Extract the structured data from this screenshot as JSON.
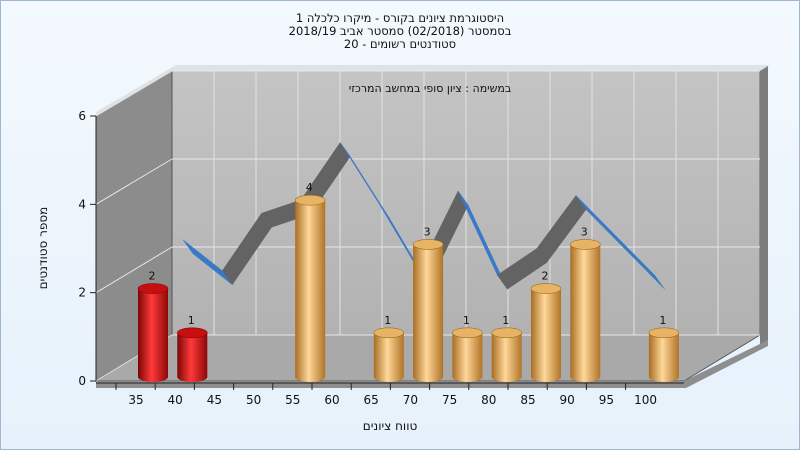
{
  "title_lines": [
    "היסטוגרמת ציונים בקורס - מיקרו כלכלה 1",
    "בסמסטר  (02/2018)  סמסטר אביב 2018/19",
    "סטודנטים רשומים - 20"
  ],
  "chart_data": {
    "type": "bar",
    "annotation": "במשימה : ציון סופי במחשב המרכזי",
    "xlabel": "טווח ציונים",
    "ylabel": "מספר סטודנטים",
    "ylim": [
      0,
      6
    ],
    "yticks": [
      0,
      2,
      4,
      6
    ],
    "x_ticks": [
      35,
      40,
      45,
      50,
      55,
      60,
      65,
      70,
      75,
      80,
      85,
      90,
      95,
      100
    ],
    "categories": [
      35,
      40,
      45,
      50,
      55,
      60,
      65,
      70,
      75,
      80,
      85,
      90,
      95,
      100
    ],
    "values": [
      2,
      1,
      0,
      0,
      4,
      0,
      1,
      3,
      1,
      1,
      2,
      3,
      0,
      1
    ],
    "bar_colors": [
      "red",
      "red",
      "gold",
      "gold",
      "gold",
      "gold",
      "gold",
      "gold",
      "gold",
      "gold",
      "gold",
      "gold",
      "gold",
      "gold"
    ],
    "trend_ribbon": [
      {
        "x": 37.5,
        "y": 2.2
      },
      {
        "x": 42.5,
        "y": 1.5
      },
      {
        "x": 47.5,
        "y": 2.8
      },
      {
        "x": 52.5,
        "y": 3.1
      },
      {
        "x": 57.5,
        "y": 4.4
      },
      {
        "x": 62.5,
        "y": 3.0
      },
      {
        "x": 67.5,
        "y": 1.5
      },
      {
        "x": 72.5,
        "y": 3.3
      },
      {
        "x": 77.5,
        "y": 1.4
      },
      {
        "x": 82.5,
        "y": 2.0
      },
      {
        "x": 87.5,
        "y": 3.2
      },
      {
        "x": 92.5,
        "y": 2.3
      },
      {
        "x": 97.5,
        "y": 1.4
      }
    ],
    "grid": true
  },
  "colors": {
    "wall_back": "#b9b9b9",
    "wall_left": "#8c8c8c",
    "floor": "#a8a8a8",
    "bar_red": "#e01818",
    "bar_gold": "#e6a853",
    "ribbon_gray": "#636363",
    "ribbon_blue": "#3a78c8"
  }
}
